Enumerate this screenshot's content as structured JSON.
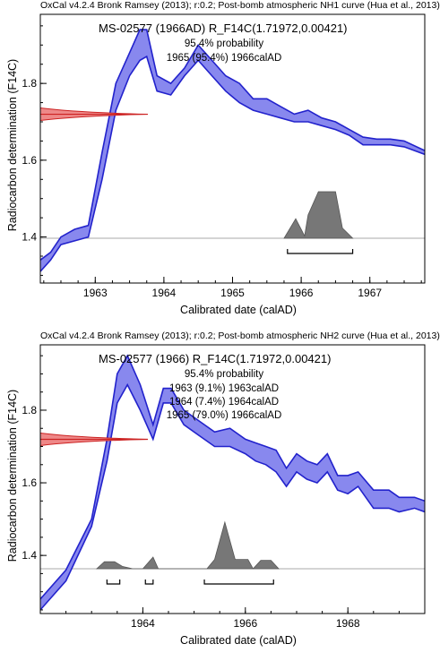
{
  "chart_data": [
    {
      "type": "area",
      "header": "OxCal v4.2.4 Bronk Ramsey (2013); r:0.2; Post-bomb atmospheric NH1 curve (Hua et al., 2013)",
      "title": "MS-02577 (1966AD) R_F14C(1.71972,0.00421)",
      "probability_heading": "95.4% probability",
      "ranges": [
        "1965 (95.4%) 1966calAD"
      ],
      "xlabel": "Calibrated date (calAD)",
      "ylabel": "Radiocarbon determination (F14C)",
      "xlim": [
        1962.2,
        1967.8
      ],
      "ylim": [
        1.28,
        1.98
      ],
      "xticks": [
        1963,
        1964,
        1965,
        1966,
        1967
      ],
      "x_tick_labels": [
        "1963",
        "1964",
        "1965",
        "1966",
        "1967"
      ],
      "yticks": [
        1.4,
        1.6,
        1.8
      ],
      "y_tick_labels": [
        "1.4",
        "1.6",
        "1.8"
      ],
      "minor_x_step": 0.25,
      "minor_y_step": 0.05,
      "curve_color": "#2222cc",
      "curve_fill": "#8888ee",
      "measurement_color": "#cc2222",
      "measurement_fill": "#ee8888",
      "posterior_color": "#777777",
      "calibration_curve": {
        "x": [
          1962.2,
          1962.35,
          1962.5,
          1962.7,
          1962.9,
          1963.1,
          1963.3,
          1963.5,
          1963.65,
          1963.75,
          1963.9,
          1964.1,
          1964.3,
          1964.5,
          1964.7,
          1964.9,
          1965.1,
          1965.3,
          1965.5,
          1965.7,
          1965.9,
          1966.1,
          1966.3,
          1966.5,
          1966.7,
          1966.9,
          1967.1,
          1967.3,
          1967.5,
          1967.8
        ],
        "upper": [
          1.34,
          1.36,
          1.4,
          1.42,
          1.43,
          1.62,
          1.8,
          1.88,
          1.94,
          1.94,
          1.82,
          1.8,
          1.84,
          1.9,
          1.86,
          1.82,
          1.8,
          1.76,
          1.76,
          1.74,
          1.72,
          1.73,
          1.71,
          1.7,
          1.68,
          1.66,
          1.655,
          1.655,
          1.65,
          1.625
        ],
        "lower": [
          1.31,
          1.34,
          1.38,
          1.39,
          1.4,
          1.55,
          1.73,
          1.82,
          1.86,
          1.87,
          1.78,
          1.77,
          1.82,
          1.86,
          1.82,
          1.78,
          1.75,
          1.73,
          1.72,
          1.71,
          1.7,
          1.7,
          1.69,
          1.68,
          1.665,
          1.64,
          1.64,
          1.64,
          1.635,
          1.615
        ]
      },
      "measurement": {
        "mean": 1.71972,
        "sigma": 0.00421
      },
      "posterior": {
        "x": [
          1965.75,
          1965.92,
          1966.05,
          1966.1,
          1966.25,
          1966.5,
          1966.6,
          1966.75
        ],
        "density": [
          0.0,
          0.42,
          0.05,
          0.5,
          1.0,
          1.0,
          0.22,
          0.0
        ]
      },
      "hpd_ranges": [
        [
          1965.8,
          1966.75
        ]
      ]
    },
    {
      "type": "area",
      "header": "OxCal v4.2.4 Bronk Ramsey (2013); r:0.2; Post-bomb atmospheric NH2 curve (Hua et al., 2013)",
      "title": "MS-02577 (1966) R_F14C(1.71972,0.00421)",
      "probability_heading": "95.4% probability",
      "ranges": [
        "1963 (9.1%) 1963calAD",
        "1964 (7.4%) 1964calAD",
        "1965 (79.0%) 1966calAD"
      ],
      "xlabel": "Calibrated date (calAD)",
      "ylabel": "Radiocarbon determination (F14C)",
      "xlim": [
        1962.0,
        1969.5
      ],
      "ylim": [
        1.24,
        1.98
      ],
      "xticks": [
        1964,
        1966,
        1968
      ],
      "x_tick_labels": [
        "1964",
        "1966",
        "1968"
      ],
      "yticks": [
        1.4,
        1.6,
        1.8
      ],
      "y_tick_labels": [
        "1.4",
        "1.6",
        "1.8"
      ],
      "minor_x_step": 0.5,
      "minor_y_step": 0.05,
      "curve_color": "#2222cc",
      "curve_fill": "#8888ee",
      "measurement_color": "#cc2222",
      "measurement_fill": "#ee8888",
      "posterior_color": "#777777",
      "calibration_curve": {
        "x": [
          1962.0,
          1962.5,
          1963.0,
          1963.3,
          1963.5,
          1963.7,
          1963.95,
          1964.2,
          1964.4,
          1964.55,
          1964.8,
          1965.1,
          1965.4,
          1965.7,
          1966.0,
          1966.2,
          1966.4,
          1966.6,
          1966.8,
          1967.0,
          1967.2,
          1967.4,
          1967.6,
          1967.8,
          1968.0,
          1968.2,
          1968.5,
          1968.8,
          1969.0,
          1969.3,
          1969.5
        ],
        "upper": [
          1.28,
          1.36,
          1.5,
          1.72,
          1.9,
          1.95,
          1.87,
          1.76,
          1.86,
          1.86,
          1.8,
          1.77,
          1.74,
          1.75,
          1.72,
          1.71,
          1.7,
          1.69,
          1.64,
          1.68,
          1.66,
          1.65,
          1.68,
          1.62,
          1.62,
          1.63,
          1.58,
          1.58,
          1.56,
          1.56,
          1.55
        ],
        "lower": [
          1.25,
          1.33,
          1.48,
          1.66,
          1.82,
          1.87,
          1.8,
          1.72,
          1.82,
          1.82,
          1.76,
          1.73,
          1.7,
          1.7,
          1.68,
          1.66,
          1.65,
          1.63,
          1.59,
          1.63,
          1.61,
          1.6,
          1.63,
          1.58,
          1.57,
          1.59,
          1.53,
          1.53,
          1.52,
          1.53,
          1.52
        ]
      },
      "measurement": {
        "mean": 1.71972,
        "sigma": 0.00421
      },
      "posterior": {
        "x": [
          1963.1,
          1963.25,
          1963.45,
          1963.6,
          1963.8,
          1964.0,
          1964.2,
          1964.3,
          1965.25,
          1965.4,
          1965.6,
          1965.8,
          1966.05,
          1966.15,
          1966.3,
          1966.5,
          1966.65
        ],
        "density": [
          0.0,
          0.15,
          0.15,
          0.05,
          0.0,
          0.0,
          0.25,
          0.0,
          0.0,
          0.2,
          1.0,
          0.2,
          0.2,
          0.0,
          0.18,
          0.18,
          0.0
        ]
      },
      "hpd_ranges": [
        [
          1963.3,
          1963.55
        ],
        [
          1964.05,
          1964.2
        ],
        [
          1965.2,
          1966.55
        ]
      ]
    }
  ]
}
